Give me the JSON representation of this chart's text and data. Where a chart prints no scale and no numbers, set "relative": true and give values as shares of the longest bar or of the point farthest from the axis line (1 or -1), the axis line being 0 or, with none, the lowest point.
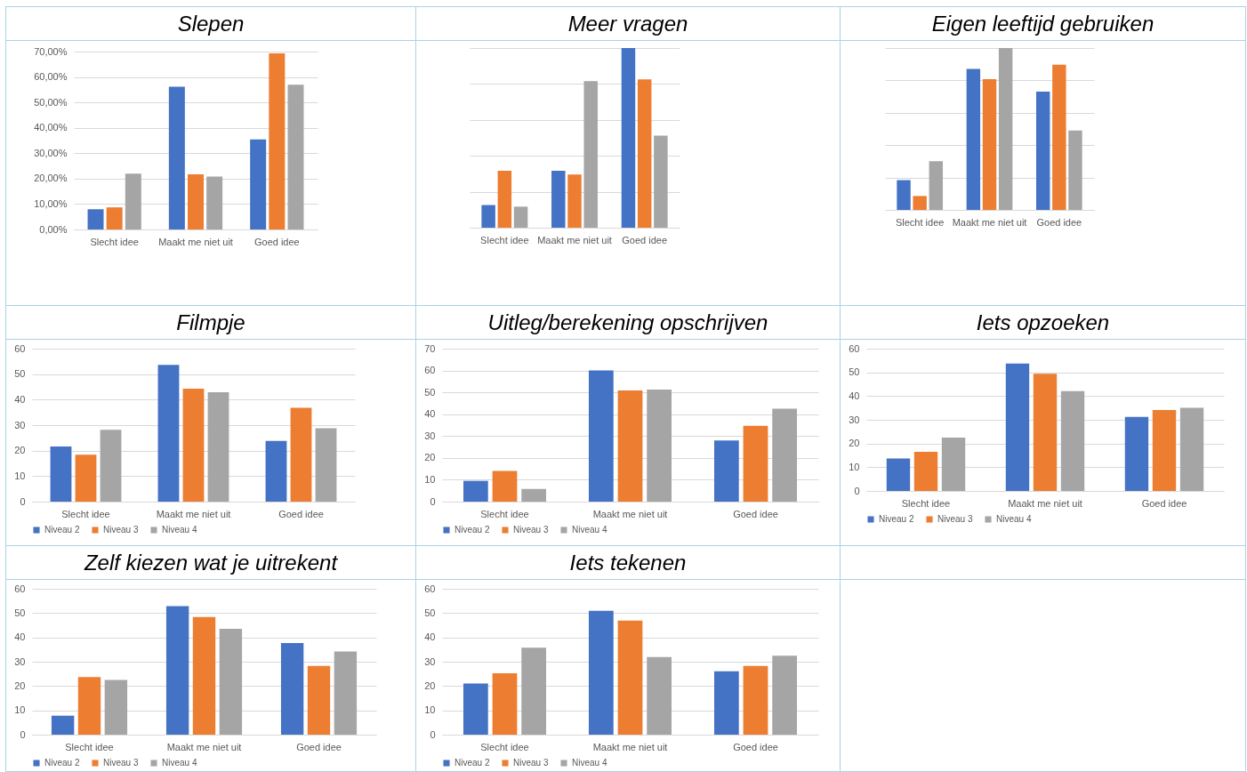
{
  "chart_data": [
    {
      "type": "bar",
      "title": "Slepen",
      "categories": [
        "Slecht idee",
        "Maakt me niet uit",
        "Goed idee"
      ],
      "series": [
        {
          "color": "#4472c4",
          "values": [
            8.0,
            56.2,
            35.4
          ]
        },
        {
          "color": "#ed7d31",
          "values": [
            8.7,
            21.7,
            69.3
          ]
        },
        {
          "color": "#a5a5a5",
          "values": [
            22.0,
            20.8,
            57.0
          ]
        }
      ],
      "ylim": [
        0,
        70
      ],
      "yticks": [
        {
          "value": 0,
          "label": "0,00%"
        },
        {
          "value": 10,
          "label": "10,00%"
        },
        {
          "value": 20,
          "label": "20,00%"
        },
        {
          "value": 30,
          "label": "30,00%"
        },
        {
          "value": 40,
          "label": "40,00%"
        },
        {
          "value": 50,
          "label": "50,00%"
        },
        {
          "value": 60,
          "label": "60,00%"
        },
        {
          "value": 70,
          "label": "70,00%"
        }
      ],
      "grid": "y"
    },
    {
      "type": "bar",
      "title": "Meer vragen",
      "categories": [
        "Slecht idee",
        "Maakt me niet uit",
        "Goed idee"
      ],
      "relative": true,
      "series": [
        {
          "color": "#4472c4",
          "values": [
            0.126,
            0.317,
            1
          ]
        },
        {
          "color": "#ed7d31",
          "values": [
            0.317,
            0.296,
            0.825
          ]
        },
        {
          "color": "#a5a5a5",
          "values": [
            0.117,
            0.816,
            0.512
          ]
        }
      ],
      "grid": "y"
    },
    {
      "type": "bar",
      "title": "Eigen leeftijd gebruiken",
      "categories": [
        "Slecht idee",
        "Maakt me niet uit",
        "Goed idee"
      ],
      "relative": true,
      "series": [
        {
          "color": "#4472c4",
          "values": [
            0.184,
            0.871,
            0.731
          ]
        },
        {
          "color": "#ed7d31",
          "values": [
            0.086,
            0.808,
            0.897
          ]
        },
        {
          "color": "#a5a5a5",
          "values": [
            0.301,
            1,
            0.49
          ]
        }
      ],
      "grid": "y"
    },
    {
      "type": "bar",
      "title": "Filmpje",
      "categories": [
        "Slecht idee",
        "Maakt me niet uit",
        "Goed idee"
      ],
      "series": [
        {
          "name": "Niveau 2",
          "color": "#4472c4",
          "values": [
            21.6,
            53.6,
            23.8
          ]
        },
        {
          "name": "Niveau 3",
          "color": "#ed7d31",
          "values": [
            18.4,
            44.3,
            36.8
          ]
        },
        {
          "name": "Niveau 4",
          "color": "#a5a5a5",
          "values": [
            28.2,
            42.9,
            28.8
          ]
        }
      ],
      "ylim": [
        0,
        60
      ],
      "yticks": [
        0,
        10,
        20,
        30,
        40,
        50,
        60
      ],
      "grid": "y",
      "legend": "bottom"
    },
    {
      "type": "bar",
      "title": "Uitleg/berekening opschrijven",
      "categories": [
        "Slecht idee",
        "Maakt me niet uit",
        "Goed idee"
      ],
      "series": [
        {
          "name": "Niveau 2",
          "color": "#4472c4",
          "values": [
            9.5,
            60.0,
            28.0
          ]
        },
        {
          "name": "Niveau 3",
          "color": "#ed7d31",
          "values": [
            14.0,
            50.9,
            34.7
          ]
        },
        {
          "name": "Niveau 4",
          "color": "#a5a5a5",
          "values": [
            5.8,
            51.3,
            42.5
          ]
        }
      ],
      "ylim": [
        0,
        70
      ],
      "yticks": [
        0,
        10,
        20,
        30,
        40,
        50,
        60,
        70
      ],
      "grid": "y",
      "legend": "bottom"
    },
    {
      "type": "bar",
      "title": "Iets opzoeken",
      "categories": [
        "Slecht idee",
        "Maakt me niet uit",
        "Goed idee"
      ],
      "series": [
        {
          "name": "Niveau 2",
          "color": "#4472c4",
          "values": [
            13.7,
            53.7,
            31.2
          ]
        },
        {
          "name": "Niveau 3",
          "color": "#ed7d31",
          "values": [
            16.5,
            49.4,
            34.1
          ]
        },
        {
          "name": "Niveau 4",
          "color": "#a5a5a5",
          "values": [
            22.5,
            42.1,
            35.1
          ]
        }
      ],
      "ylim": [
        0,
        60
      ],
      "yticks": [
        0,
        10,
        20,
        30,
        40,
        50,
        60
      ],
      "grid": "y",
      "legend": "bottom"
    },
    {
      "type": "bar",
      "title": "Zelf kiezen wat je uitrekent",
      "categories": [
        "Slecht idee",
        "Maakt me niet uit",
        "Goed idee"
      ],
      "series": [
        {
          "name": "Niveau 2",
          "color": "#4472c4",
          "values": [
            7.8,
            52.9,
            37.7
          ]
        },
        {
          "name": "Niveau 3",
          "color": "#ed7d31",
          "values": [
            23.7,
            48.4,
            28.3
          ]
        },
        {
          "name": "Niveau 4",
          "color": "#a5a5a5",
          "values": [
            22.5,
            43.5,
            34.2
          ]
        }
      ],
      "ylim": [
        0,
        60
      ],
      "yticks": [
        0,
        10,
        20,
        30,
        40,
        50,
        60
      ],
      "grid": "y",
      "legend": "bottom"
    },
    {
      "type": "bar",
      "title": "Iets tekenen",
      "categories": [
        "Slecht idee",
        "Maakt me niet uit",
        "Goed idee"
      ],
      "series": [
        {
          "name": "Niveau 2",
          "color": "#4472c4",
          "values": [
            21.0,
            50.9,
            26.1
          ]
        },
        {
          "name": "Niveau 3",
          "color": "#ed7d31",
          "values": [
            25.2,
            46.9,
            28.3
          ]
        },
        {
          "name": "Niveau 4",
          "color": "#a5a5a5",
          "values": [
            35.8,
            31.9,
            32.5
          ]
        }
      ],
      "ylim": [
        0,
        60
      ],
      "yticks": [
        0,
        10,
        20,
        30,
        40,
        50,
        60
      ],
      "grid": "y",
      "legend": "bottom"
    }
  ]
}
